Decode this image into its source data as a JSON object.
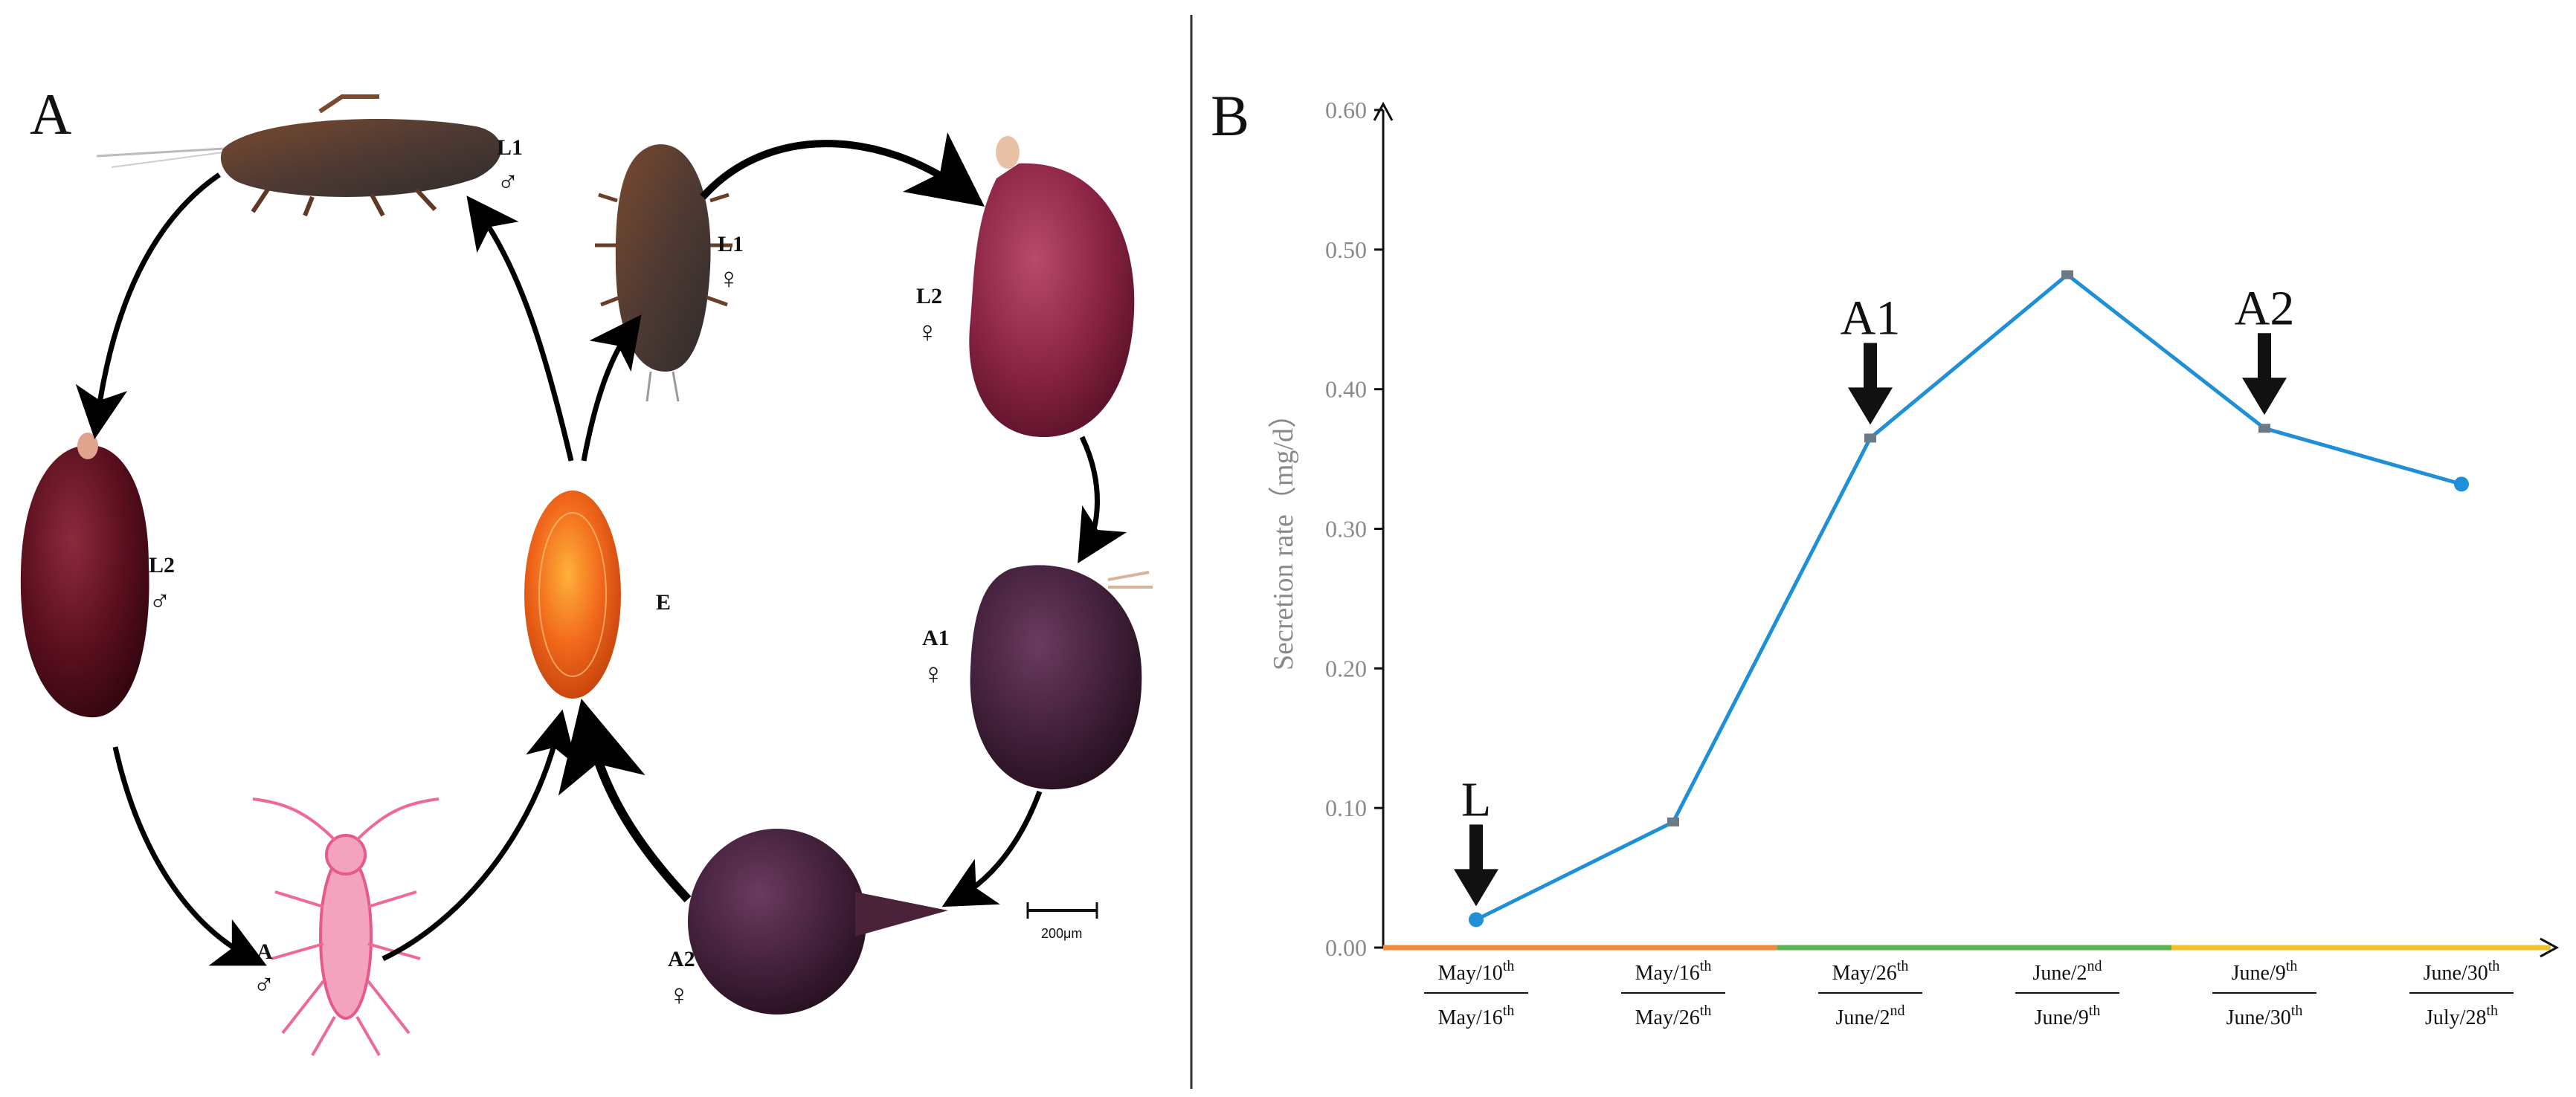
{
  "panel_a": {
    "label": "A",
    "stages": {
      "male_l1": {
        "code": "L1",
        "sex": "♂"
      },
      "male_l2": {
        "code": "L2",
        "sex": "♂"
      },
      "male_adult": {
        "code": "A",
        "sex": "♂"
      },
      "egg": {
        "code": "E"
      },
      "female_l1": {
        "code": "L1",
        "sex": "♀"
      },
      "female_l2": {
        "code": "L2",
        "sex": "♀"
      },
      "female_a1": {
        "code": "A1",
        "sex": "♀"
      },
      "female_a2": {
        "code": "A2",
        "sex": "♀"
      }
    },
    "scale_bar": "200μm"
  },
  "panel_b": {
    "label": "B",
    "chart_data": {
      "type": "line",
      "ylabel": "Secretion rate（mg/d）",
      "ylim": [
        0,
        0.6
      ],
      "yticks": [
        "0.00",
        "0.10",
        "0.20",
        "0.30",
        "0.40",
        "0.50",
        "0.60"
      ],
      "categories": [
        {
          "top": "May/10",
          "top_sup": "th",
          "bottom": "May/16",
          "bottom_sup": "th"
        },
        {
          "top": "May/16",
          "top_sup": "th",
          "bottom": "May/26",
          "bottom_sup": "th"
        },
        {
          "top": "May/26",
          "top_sup": "th",
          "bottom": "June/2",
          "bottom_sup": "nd"
        },
        {
          "top": "June/2",
          "top_sup": "nd",
          "bottom": "June/9",
          "bottom_sup": "th"
        },
        {
          "top": "June/9",
          "top_sup": "th",
          "bottom": "June/30",
          "bottom_sup": "th"
        },
        {
          "top": "June/30",
          "top_sup": "th",
          "bottom": "July/28",
          "bottom_sup": "th"
        }
      ],
      "values": [
        0.02,
        0.09,
        0.365,
        0.482,
        0.372,
        0.332
      ],
      "line_color": "#1f8fd6",
      "annotations": [
        {
          "label": "L",
          "index": 0
        },
        {
          "label": "A1",
          "index": 2
        },
        {
          "label": "A2",
          "index": 4
        }
      ],
      "axis_segment_colors": [
        "#f08a3c",
        "#5ab552",
        "#f2c12e"
      ]
    }
  }
}
